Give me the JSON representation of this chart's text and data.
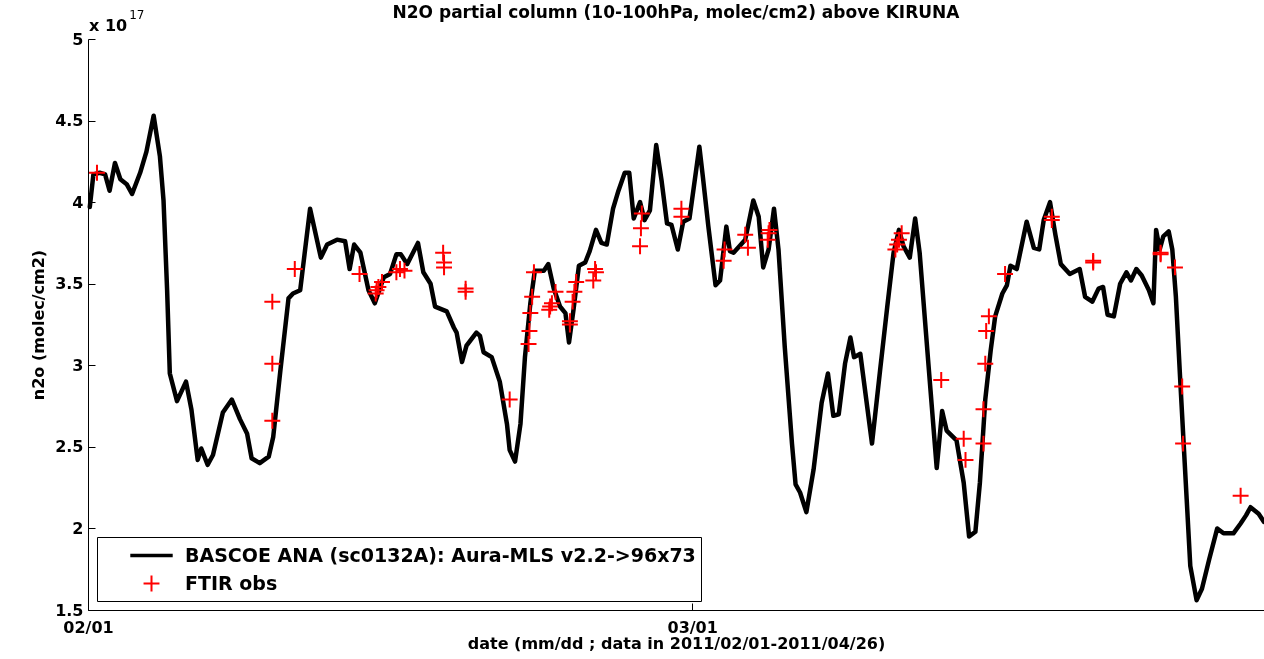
{
  "chart_data": {
    "type": "line",
    "title": "N2O partial column (10-100hPa, molec/cm2) above KIRUNA",
    "xlabel": "date (mm/dd ; data in 2011/02/01-2011/04/26)",
    "ylabel": "n2o (molec/cm2)",
    "annotations": [
      "x 10$^{17}$"
    ],
    "xlim": [
      "2011-02-01",
      "2011-03-27T12:00"
    ],
    "xticks": [
      {
        "value": "2011-02-01",
        "label": "02/01"
      },
      {
        "value": "2011-03-01",
        "label": "03/01"
      }
    ],
    "ylim": [
      1.5,
      5
    ],
    "yticks": [
      1.5,
      2,
      2.5,
      3,
      3.5,
      4,
      4.5,
      5
    ],
    "legend": "bottom left",
    "series": [
      {
        "name": "BASCOE ANA (sc0132A): Aura-MLS v2.2->96x73",
        "color": "#000000",
        "x": [
          "2011-02-01T02:00",
          "2011-02-01T06:00",
          "2011-02-01T13:00",
          "2011-02-01T19:00",
          "2011-02-02T00:00",
          "2011-02-02T06:00",
          "2011-02-02T12:00",
          "2011-02-02T19:00",
          "2011-02-03T01:00",
          "2011-02-03T10:00",
          "2011-02-03T17:00",
          "2011-02-04T01:00",
          "2011-02-04T08:00",
          "2011-02-04T12:00",
          "2011-02-04T16:00",
          "2011-02-04T19:00",
          "2011-02-05T03:00",
          "2011-02-05T13:00",
          "2011-02-05T19:00",
          "2011-02-06T02:00",
          "2011-02-06T06:00",
          "2011-02-06T13:00",
          "2011-02-06T19:00",
          "2011-02-07T06:00",
          "2011-02-07T16:00",
          "2011-02-08T01:00",
          "2011-02-08T09:00",
          "2011-02-08T14:00",
          "2011-02-08T23:00",
          "2011-02-09T09:00",
          "2011-02-09T14:00",
          "2011-02-09T22:00",
          "2011-02-10T07:00",
          "2011-02-10T12:00",
          "2011-02-10T20:00",
          "2011-02-11T07:00",
          "2011-02-11T19:00",
          "2011-02-12T02:00",
          "2011-02-12T13:00",
          "2011-02-12T22:00",
          "2011-02-13T03:00",
          "2011-02-13T08:00",
          "2011-02-13T15:00",
          "2011-02-14T00:00",
          "2011-02-14T07:00",
          "2011-02-14T17:00",
          "2011-02-15T00:00",
          "2011-02-15T07:00",
          "2011-02-15T12:00",
          "2011-02-15T19:00",
          "2011-02-16T07:00",
          "2011-02-16T13:00",
          "2011-02-16T21:00",
          "2011-02-17T02:00",
          "2011-02-17T15:00",
          "2011-02-17T23:00",
          "2011-02-18T02:00",
          "2011-02-18T08:00",
          "2011-02-18T13:00",
          "2011-02-19T00:00",
          "2011-02-19T04:00",
          "2011-02-19T08:00",
          "2011-02-19T17:00",
          "2011-02-20T02:00",
          "2011-02-20T10:00",
          "2011-02-20T13:00",
          "2011-02-20T19:00",
          "2011-02-21T01:00",
          "2011-02-21T06:00",
          "2011-02-21T12:00",
          "2011-02-21T17:00",
          "2011-02-22T03:00",
          "2011-02-22T08:00",
          "2011-02-22T14:00",
          "2011-02-22T21:00",
          "2011-02-23T03:00",
          "2011-02-23T07:00",
          "2011-02-23T12:00",
          "2011-02-23T18:00",
          "2011-02-24T01:00",
          "2011-02-24T06:00",
          "2011-02-24T13:00",
          "2011-02-24T19:00",
          "2011-02-25T01:00",
          "2011-02-25T08:00",
          "2011-02-25T14:00",
          "2011-02-25T21:00",
          "2011-02-26T02:00",
          "2011-02-26T07:00",
          "2011-02-26T14:00",
          "2011-02-26T19:00",
          "2011-02-27T01:00",
          "2011-02-27T08:00",
          "2011-02-27T14:00",
          "2011-02-27T20:00",
          "2011-02-28T01:00",
          "2011-02-28T08:00",
          "2011-02-28T14:00",
          "2011-02-28T21:00",
          "2011-03-01T08:00",
          "2011-03-01T12:00",
          "2011-03-01T18:00",
          "2011-03-02T02:00",
          "2011-03-02T07:00",
          "2011-03-02T14:00",
          "2011-03-02T18:00",
          "2011-03-02T22:00",
          "2011-03-03T11:00",
          "2011-03-03T20:00",
          "2011-03-04T02:00",
          "2011-03-04T07:00",
          "2011-03-04T13:00",
          "2011-03-04T19:00",
          "2011-03-05T00:00",
          "2011-03-05T07:00",
          "2011-03-05T15:00",
          "2011-03-05T19:00",
          "2011-03-06T00:00",
          "2011-03-06T07:00",
          "2011-03-06T15:00",
          "2011-03-07T00:00",
          "2011-03-07T07:00",
          "2011-03-07T13:00",
          "2011-03-07T19:00",
          "2011-03-08T02:00",
          "2011-03-08T08:00",
          "2011-03-08T12:00",
          "2011-03-08T19:00",
          "2011-03-09T08:00",
          "2011-03-09T17:00",
          "2011-03-10T01:00",
          "2011-03-10T08:00",
          "2011-03-10T14:00",
          "2011-03-10T19:00",
          "2011-03-11T02:00",
          "2011-03-11T08:00",
          "2011-03-11T13:00",
          "2011-03-11T23:00",
          "2011-03-12T08:00",
          "2011-03-12T14:00",
          "2011-03-12T19:00",
          "2011-03-13T06:00",
          "2011-03-13T14:00",
          "2011-03-13T20:00",
          "2011-03-14T03:00",
          "2011-03-14T08:00",
          "2011-03-14T14:00",
          "2011-03-14T20:00",
          "2011-03-15T01:00",
          "2011-03-15T09:00",
          "2011-03-15T14:00",
          "2011-03-15T18:00",
          "2011-03-16T01:00",
          "2011-03-16T12:00",
          "2011-03-16T20:00",
          "2011-03-17T02:00",
          "2011-03-17T07:00",
          "2011-03-17T14:00",
          "2011-03-17T20:00",
          "2011-03-18T02:00",
          "2011-03-18T12:00",
          "2011-03-18T23:00",
          "2011-03-19T05:00",
          "2011-03-19T13:00",
          "2011-03-19T20:00",
          "2011-03-20T01:00",
          "2011-03-20T06:00",
          "2011-03-20T13:00",
          "2011-03-20T20:00",
          "2011-03-21T03:00",
          "2011-03-21T08:00",
          "2011-03-21T14:00",
          "2011-03-21T20:00",
          "2011-03-22T04:00",
          "2011-03-22T09:00",
          "2011-03-22T12:00",
          "2011-03-22T16:00",
          "2011-03-22T20:00",
          "2011-03-23T02:00",
          "2011-03-23T06:00",
          "2011-03-23T10:00",
          "2011-03-23T15:00",
          "2011-03-23T22:00",
          "2011-03-24T02:00",
          "2011-03-24T09:00",
          "2011-03-24T15:00",
          "2011-03-24T23:00",
          "2011-03-25T08:00",
          "2011-03-25T15:00",
          "2011-03-26T02:00",
          "2011-03-26T10:00",
          "2011-03-26T16:00",
          "2011-03-26T21:00",
          "2011-03-27T06:00",
          "2011-03-27T12:00"
        ],
        "values": [
          3.97,
          4.17,
          4.18,
          4.17,
          4.07,
          4.24,
          4.14,
          4.11,
          4.05,
          4.18,
          4.31,
          4.53,
          4.28,
          4.01,
          3.46,
          2.95,
          2.78,
          2.9,
          2.73,
          2.42,
          2.49,
          2.39,
          2.45,
          2.71,
          2.79,
          2.67,
          2.58,
          2.43,
          2.4,
          2.44,
          2.56,
          2.97,
          3.41,
          3.44,
          3.46,
          3.96,
          3.66,
          3.74,
          3.77,
          3.76,
          3.59,
          3.74,
          3.69,
          3.46,
          3.38,
          3.54,
          3.56,
          3.68,
          3.68,
          3.62,
          3.75,
          3.57,
          3.5,
          3.36,
          3.33,
          3.23,
          3.2,
          3.02,
          3.12,
          3.2,
          3.18,
          3.08,
          3.05,
          2.9,
          2.64,
          2.48,
          2.41,
          2.64,
          3.05,
          3.38,
          3.58,
          3.58,
          3.62,
          3.47,
          3.36,
          3.32,
          3.14,
          3.34,
          3.61,
          3.63,
          3.7,
          3.83,
          3.75,
          3.74,
          3.96,
          4.07,
          4.18,
          4.18,
          3.9,
          4.0,
          3.89,
          3.95,
          4.35,
          4.13,
          3.87,
          3.86,
          3.71,
          3.88,
          3.9,
          4.34,
          4.15,
          3.85,
          3.49,
          3.52,
          3.85,
          3.7,
          3.69,
          3.77,
          4.01,
          3.91,
          3.6,
          3.71,
          3.96,
          3.71,
          3.11,
          2.52,
          2.27,
          2.22,
          2.1,
          2.36,
          2.77,
          2.95,
          2.69,
          2.7,
          3.01,
          3.17,
          3.05,
          3.07,
          2.52,
          2.97,
          3.36,
          3.69,
          3.83,
          3.73,
          3.66,
          3.9,
          3.69,
          2.99,
          2.37,
          2.72,
          2.6,
          2.54,
          2.28,
          1.95,
          1.98,
          2.28,
          2.79,
          3.09,
          3.3,
          3.44,
          3.49,
          3.61,
          3.59,
          3.88,
          3.72,
          3.71,
          3.89,
          4.0,
          3.8,
          3.62,
          3.56,
          3.59,
          3.42,
          3.39,
          3.47,
          3.48,
          3.31,
          3.3,
          3.5,
          3.57,
          3.52,
          3.59,
          3.55,
          3.46,
          3.38,
          3.83,
          3.71,
          3.79,
          3.82,
          3.71,
          3.42,
          2.89,
          2.18,
          1.77,
          1.56,
          1.63,
          1.81,
          2.0,
          1.97,
          1.97,
          2.03,
          2.08,
          2.13,
          2.09,
          2.04
        ]
      },
      {
        "name": "FTIR obs",
        "type": "scatter",
        "color": "#ff0000",
        "marker": "cross",
        "x": [
          "2011-02-01T10:00",
          "2011-02-09T13:00",
          "2011-02-09T13:00",
          "2011-02-09T13:00",
          "2011-02-10T14:00",
          "2011-02-13T14:00",
          "2011-02-14T08:00",
          "2011-02-14T09:00",
          "2011-02-14T11:00",
          "2011-02-14T15:00",
          "2011-02-15T07:00",
          "2011-02-15T11:00",
          "2011-02-15T16:00",
          "2011-02-17T11:00",
          "2011-02-17T12:00",
          "2011-02-17T12:00",
          "2011-02-18T12:00",
          "2011-02-18T12:00",
          "2011-02-20T13:00",
          "2011-02-21T10:00",
          "2011-02-21T11:00",
          "2011-02-21T12:00",
          "2011-02-21T14:00",
          "2011-02-21T16:00",
          "2011-02-22T09:00",
          "2011-02-22T10:00",
          "2011-02-22T12:00",
          "2011-02-22T16:00",
          "2011-02-23T08:00",
          "2011-02-23T08:00",
          "2011-02-23T11:00",
          "2011-02-23T13:00",
          "2011-02-23T15:00",
          "2011-02-24T10:00",
          "2011-02-24T12:00",
          "2011-02-24T13:00",
          "2011-02-26T14:00",
          "2011-02-26T15:00",
          "2011-02-26T16:00",
          "2011-02-28T12:00",
          "2011-02-28T12:00",
          "2011-03-02T11:00",
          "2011-03-02T12:00",
          "2011-03-03T11:00",
          "2011-03-03T14:00",
          "2011-03-04T12:00",
          "2011-03-04T13:00",
          "2011-03-04T14:00",
          "2011-03-10T10:00",
          "2011-03-10T12:00",
          "2011-03-10T14:00",
          "2011-03-10T17:00",
          "2011-03-12T13:00",
          "2011-03-13T14:00",
          "2011-03-13T16:00",
          "2011-03-14T12:00",
          "2011-03-14T12:00",
          "2011-03-14T14:00",
          "2011-03-14T15:00",
          "2011-03-14T18:00",
          "2011-03-15T12:00",
          "2011-03-17T16:00",
          "2011-03-17T16:00",
          "2011-03-19T14:00",
          "2011-03-19T14:00",
          "2011-03-22T17:00",
          "2011-03-22T17:00",
          "2011-03-23T09:00",
          "2011-03-23T17:00",
          "2011-03-23T18:00",
          "2011-03-26T10:00"
        ],
        "values": [
          4.18,
          2.66,
          3.01,
          3.39,
          3.59,
          3.56,
          3.44,
          3.46,
          3.48,
          3.51,
          3.57,
          3.59,
          3.58,
          3.69,
          3.63,
          3.6,
          3.47,
          3.45,
          2.79,
          3.13,
          3.21,
          3.32,
          3.42,
          3.57,
          3.34,
          3.36,
          3.38,
          3.45,
          3.27,
          3.25,
          3.39,
          3.45,
          3.51,
          3.52,
          3.59,
          3.57,
          3.73,
          3.84,
          3.93,
          3.96,
          3.91,
          3.64,
          3.71,
          3.8,
          3.72,
          3.77,
          3.81,
          3.83,
          3.71,
          3.74,
          3.77,
          3.81,
          2.91,
          2.55,
          2.42,
          2.52,
          2.73,
          3.01,
          3.21,
          3.3,
          3.56,
          3.89,
          3.91,
          3.63,
          3.64,
          3.68,
          3.69,
          3.6,
          2.87,
          2.52,
          2.2
        ]
      }
    ]
  }
}
